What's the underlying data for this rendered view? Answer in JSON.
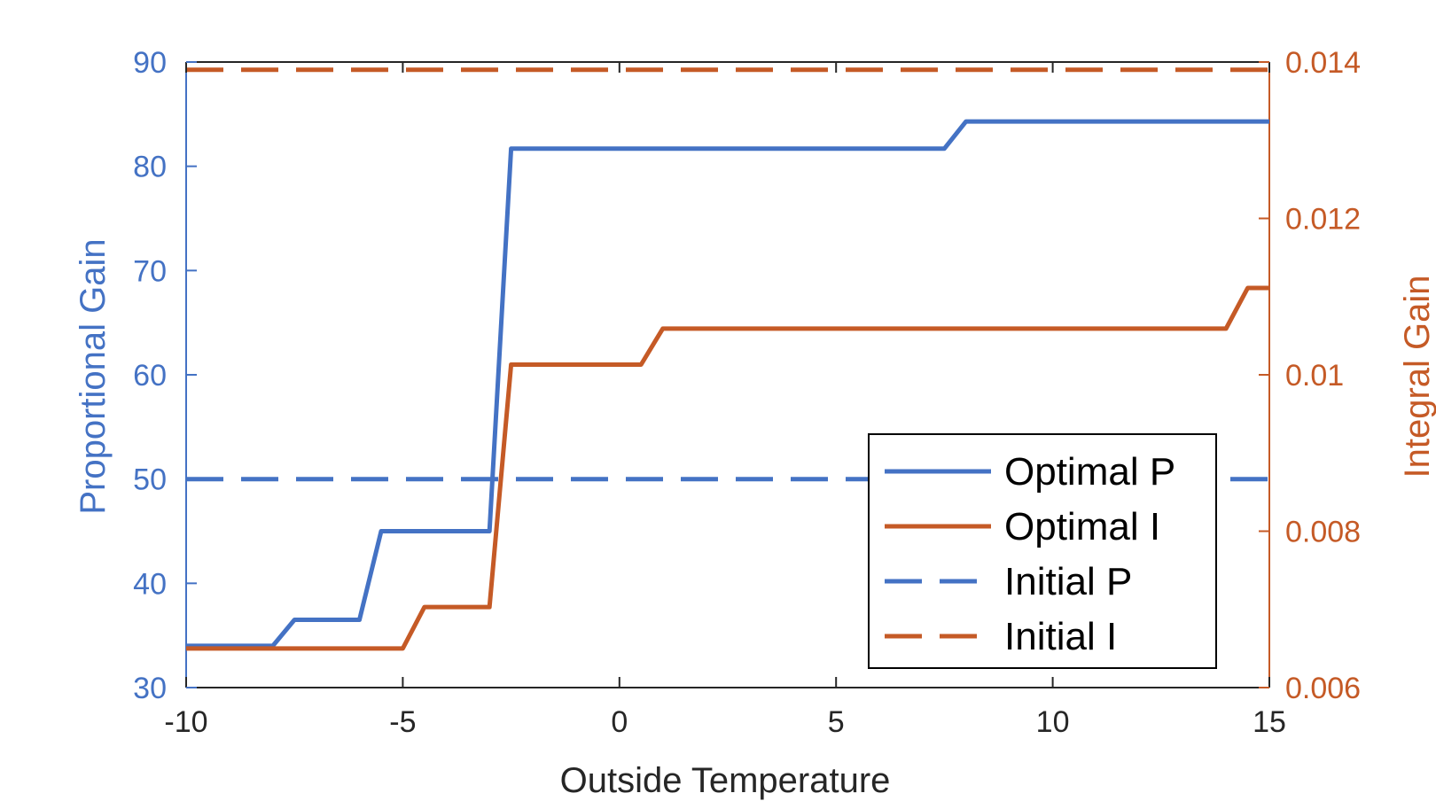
{
  "chart_data": {
    "type": "line",
    "title": "",
    "xlabel": "Outside Temperature",
    "ylabel_left": "Proportional Gain",
    "ylabel_right": "Integral Gain",
    "xlim": [
      -10,
      15
    ],
    "ylim_left": [
      30,
      90
    ],
    "ylim_right": [
      0.006,
      0.014
    ],
    "x_ticks": [
      -10,
      -5,
      0,
      5,
      10,
      15
    ],
    "x_tick_labels": [
      "-10",
      "-5",
      "0",
      "5",
      "10",
      "15"
    ],
    "y_left_ticks": [
      30,
      40,
      50,
      60,
      70,
      80,
      90
    ],
    "y_left_tick_labels": [
      "30",
      "40",
      "50",
      "60",
      "70",
      "80",
      "90"
    ],
    "y_right_ticks": [
      0.006,
      0.008,
      0.01,
      0.012,
      0.014
    ],
    "y_right_tick_labels": [
      "0.006",
      "0.008",
      "0.01",
      "0.012",
      "0.014"
    ],
    "grid": false,
    "legend_position": "bottom-right",
    "colors": {
      "left_axis": "#4472C4",
      "right_axis": "#C55A26",
      "axis": "#262626"
    },
    "series": [
      {
        "name": "Optimal P",
        "axis": "left",
        "style": "solid",
        "color": "#4472C4",
        "x": [
          -10,
          -8,
          -7.5,
          -6,
          -5.5,
          -3,
          -2.5,
          7.5,
          8,
          15
        ],
        "y": [
          34,
          34,
          36.5,
          36.5,
          45,
          45,
          81.7,
          81.7,
          84.3,
          84.3
        ]
      },
      {
        "name": "Optimal I",
        "axis": "right",
        "style": "solid",
        "color": "#C55A26",
        "x": [
          -10,
          -5,
          -4.5,
          -3,
          -2.5,
          0.5,
          1,
          14,
          14.5,
          15
        ],
        "y": [
          0.0065,
          0.0065,
          0.00703,
          0.00703,
          0.01013,
          0.01013,
          0.01059,
          0.01059,
          0.01111,
          0.01111
        ]
      },
      {
        "name": "Initial P",
        "axis": "left",
        "style": "dashed",
        "color": "#4472C4",
        "x": [
          -10,
          15
        ],
        "y": [
          50,
          50
        ]
      },
      {
        "name": "Initial I",
        "axis": "right",
        "style": "dashed",
        "color": "#C55A26",
        "x": [
          -10,
          15
        ],
        "y": [
          0.0139,
          0.0139
        ]
      }
    ]
  }
}
